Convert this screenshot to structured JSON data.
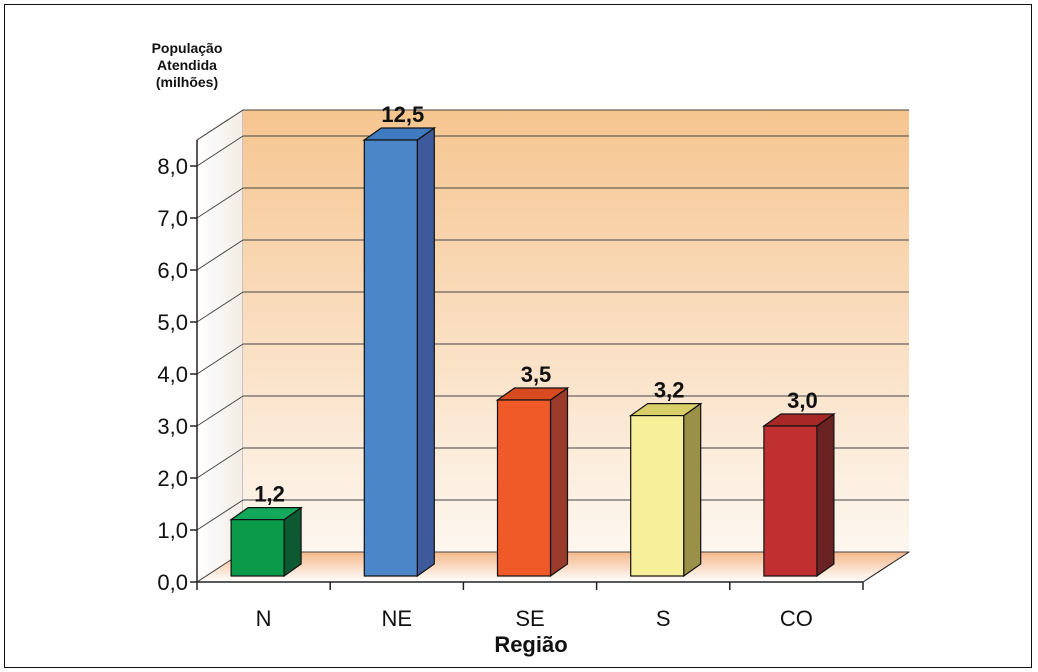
{
  "chart_data": {
    "type": "bar",
    "ylabel": [
      "População",
      "Atendida",
      "(milhões)"
    ],
    "xlabel": "Região",
    "categories": [
      "N",
      "NE",
      "SE",
      "S",
      "CO"
    ],
    "values": [
      1.2,
      12.5,
      3.5,
      3.2,
      3.0
    ],
    "value_labels": [
      "1,2",
      "12,5",
      "3,5",
      "3,2",
      "3,0"
    ],
    "y_ticks": [
      0,
      1,
      2,
      3,
      4,
      5,
      6,
      7,
      8
    ],
    "y_tick_labels": [
      "0,0",
      "1,0",
      "2,0",
      "3,0",
      "4,0",
      "5,0",
      "6,0",
      "7,0",
      "8,0"
    ],
    "ylim": [
      0,
      8.5
    ],
    "axis_break": "NE bar truncated at top of axis",
    "grid": true,
    "bar_colors": [
      {
        "front": "#0a9a4a",
        "side": "#0d5a32",
        "top": "#13a85a"
      },
      {
        "front": "#4a86c8",
        "side": "#3e5a9a",
        "top": "#3f7ac0"
      },
      {
        "front": "#f05a28",
        "side": "#9a3a2a",
        "top": "#d84a20"
      },
      {
        "front": "#f8ef9a",
        "side": "#9a9048",
        "top": "#d8cf6a"
      },
      {
        "front": "#c03030",
        "side": "#6a2222",
        "top": "#a82828"
      }
    ],
    "background_gradient": [
      "#f6c590",
      "#fdf7f0"
    ]
  }
}
